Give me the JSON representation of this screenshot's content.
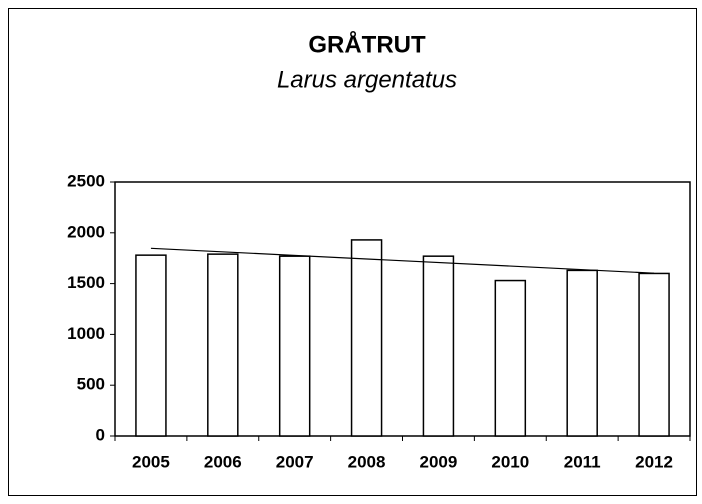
{
  "chart_data": {
    "type": "bar",
    "title": "GRÅTRUT",
    "subtitle": "Larus argentatus",
    "categories": [
      "2005",
      "2006",
      "2007",
      "2008",
      "2009",
      "2010",
      "2011",
      "2012"
    ],
    "values": [
      1780,
      1790,
      1770,
      1930,
      1770,
      1530,
      1630,
      1600
    ],
    "color": "#ffffff",
    "trendline": true,
    "ylim": [
      0,
      2500
    ],
    "yticks": [
      0,
      500,
      1000,
      1500,
      2000,
      2500
    ],
    "grid": false
  }
}
